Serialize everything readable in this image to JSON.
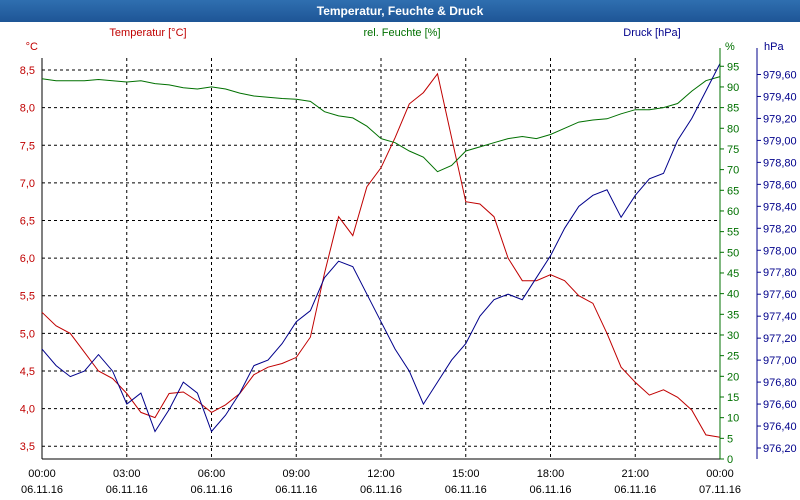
{
  "window": {
    "title": "Temperatur, Feuchte & Druck"
  },
  "colors": {
    "temperature": "#c00000",
    "humidity": "#007000",
    "pressure": "#00008b",
    "title_bar": "#1e5596",
    "grid": "#000000",
    "axis_text": "#000000"
  },
  "chart_data": {
    "type": "line",
    "title": "Temperatur, Feuchte & Druck",
    "grid": true,
    "x_axis": {
      "ticks": [
        {
          "time": "00:00",
          "date": "06.11.16"
        },
        {
          "time": "03:00",
          "date": "06.11.16"
        },
        {
          "time": "06:00",
          "date": "06.11.16"
        },
        {
          "time": "09:00",
          "date": "06.11.16"
        },
        {
          "time": "12:00",
          "date": "06.11.16"
        },
        {
          "time": "15:00",
          "date": "06.11.16"
        },
        {
          "time": "18:00",
          "date": "06.11.16"
        },
        {
          "time": "21:00",
          "date": "06.11.16"
        },
        {
          "time": "00:00",
          "date": "07.11.16"
        }
      ],
      "range_hours": [
        0,
        24
      ]
    },
    "axes": {
      "temperature": {
        "legend": "Temperatur [°C]",
        "unit": "°C",
        "range": [
          3.33,
          8.66
        ],
        "ticks": [
          "3,5",
          "4,0",
          "4,5",
          "5,0",
          "5,5",
          "6,0",
          "6,5",
          "7,0",
          "7,5",
          "8,0",
          "8,5"
        ],
        "tick_values": [
          3.5,
          4.0,
          4.5,
          5.0,
          5.5,
          6.0,
          6.5,
          7.0,
          7.5,
          8.0,
          8.5
        ]
      },
      "humidity": {
        "legend": "rel. Feuchte [%]",
        "unit": "%",
        "range": [
          0,
          97
        ],
        "ticks": [
          "0",
          "5",
          "10",
          "15",
          "20",
          "25",
          "30",
          "35",
          "40",
          "45",
          "50",
          "55",
          "60",
          "65",
          "70",
          "75",
          "80",
          "85",
          "90",
          "95"
        ],
        "tick_values": [
          0,
          5,
          10,
          15,
          20,
          25,
          30,
          35,
          40,
          45,
          50,
          55,
          60,
          65,
          70,
          75,
          80,
          85,
          90,
          95
        ]
      },
      "pressure": {
        "legend": "Druck [hPa]",
        "unit": "hPa",
        "range": [
          976.1,
          979.75
        ],
        "ticks": [
          "976,20",
          "976,40",
          "976,60",
          "976,80",
          "977,00",
          "977,20",
          "977,40",
          "977,60",
          "977,80",
          "978,00",
          "978,20",
          "978,40",
          "978,60",
          "978,80",
          "979,00",
          "979,20",
          "979,40",
          "979,60"
        ],
        "tick_values": [
          976.2,
          976.4,
          976.6,
          976.8,
          977.0,
          977.2,
          977.4,
          977.6,
          977.8,
          978.0,
          978.2,
          978.4,
          978.6,
          978.8,
          979.0,
          979.2,
          979.4,
          979.6
        ]
      }
    },
    "series": [
      {
        "name": "Temperatur [°C]",
        "axis": "temperature",
        "x": [
          0,
          0.5,
          1,
          1.5,
          2,
          2.5,
          3,
          3.5,
          4,
          4.5,
          5,
          5.5,
          6,
          6.5,
          7,
          7.5,
          8,
          8.5,
          9,
          9.5,
          10,
          10.5,
          11,
          11.5,
          12,
          12.5,
          13,
          13.5,
          14,
          14.5,
          15,
          15.5,
          16,
          16.5,
          17,
          17.5,
          18,
          18.5,
          19,
          19.5,
          20,
          20.5,
          21,
          21.5,
          22,
          22.5,
          23,
          23.5,
          24
        ],
        "values": [
          5.28,
          5.1,
          5.0,
          4.75,
          4.5,
          4.4,
          4.2,
          3.95,
          3.88,
          4.2,
          4.22,
          4.1,
          3.95,
          4.05,
          4.2,
          4.45,
          4.55,
          4.6,
          4.68,
          4.95,
          5.8,
          6.55,
          6.3,
          6.95,
          7.2,
          7.6,
          8.05,
          8.2,
          8.45,
          7.6,
          6.75,
          6.72,
          6.55,
          6.0,
          5.7,
          5.7,
          5.78,
          5.7,
          5.5,
          5.4,
          5.0,
          4.55,
          4.35,
          4.18,
          4.25,
          4.15,
          3.98,
          3.65,
          3.62
        ]
      },
      {
        "name": "rel. Feuchte [%]",
        "axis": "humidity",
        "x": [
          0,
          0.5,
          1,
          1.5,
          2,
          2.5,
          3,
          3.5,
          4,
          4.5,
          5,
          5.5,
          6,
          6.5,
          7,
          7.5,
          8,
          8.5,
          9,
          9.5,
          10,
          10.5,
          11,
          11.5,
          12,
          12.5,
          13,
          13.5,
          14,
          14.5,
          15,
          15.5,
          16,
          16.5,
          17,
          17.5,
          18,
          18.5,
          19,
          19.5,
          20,
          20.5,
          21,
          21.5,
          22,
          22.5,
          23,
          23.5,
          24
        ],
        "values": [
          92,
          91.5,
          91.5,
          91.5,
          91.8,
          91.5,
          91.2,
          91.5,
          90.8,
          90.5,
          89.8,
          89.5,
          90,
          89.5,
          88.5,
          87.8,
          87.5,
          87.2,
          87,
          86.5,
          84,
          83,
          82.5,
          80.5,
          77.5,
          76.5,
          74.5,
          73,
          69.5,
          71,
          74.5,
          75.5,
          76.5,
          77.5,
          78,
          77.5,
          78.5,
          80,
          81.5,
          82,
          82.3,
          83.5,
          84.5,
          84.5,
          85,
          86,
          89,
          91.5,
          92.5
        ]
      },
      {
        "name": "Druck [hPa]",
        "axis": "pressure",
        "x": [
          0,
          0.5,
          1,
          1.5,
          2,
          2.5,
          3,
          3.5,
          4,
          4.5,
          5,
          5.5,
          6,
          6.5,
          7,
          7.5,
          8,
          8.5,
          9,
          9.5,
          10,
          10.5,
          11,
          11.5,
          12,
          12.5,
          13,
          13.5,
          14,
          14.5,
          15,
          15.5,
          16,
          16.5,
          17,
          17.5,
          18,
          18.5,
          19,
          19.5,
          20,
          20.5,
          21,
          21.5,
          22,
          22.5,
          23,
          23.5,
          24
        ],
        "values": [
          977.1,
          976.95,
          976.85,
          976.9,
          977.05,
          976.9,
          976.6,
          976.7,
          976.35,
          976.55,
          976.8,
          976.7,
          976.35,
          976.5,
          976.7,
          976.95,
          977.0,
          977.15,
          977.35,
          977.45,
          977.75,
          977.9,
          977.85,
          977.6,
          977.35,
          977.1,
          976.9,
          976.6,
          976.8,
          977.0,
          977.15,
          977.4,
          977.55,
          977.6,
          977.55,
          977.75,
          977.95,
          978.2,
          978.4,
          978.5,
          978.55,
          978.3,
          978.5,
          978.65,
          978.7,
          979.0,
          979.2,
          979.45,
          979.7
        ]
      }
    ]
  }
}
